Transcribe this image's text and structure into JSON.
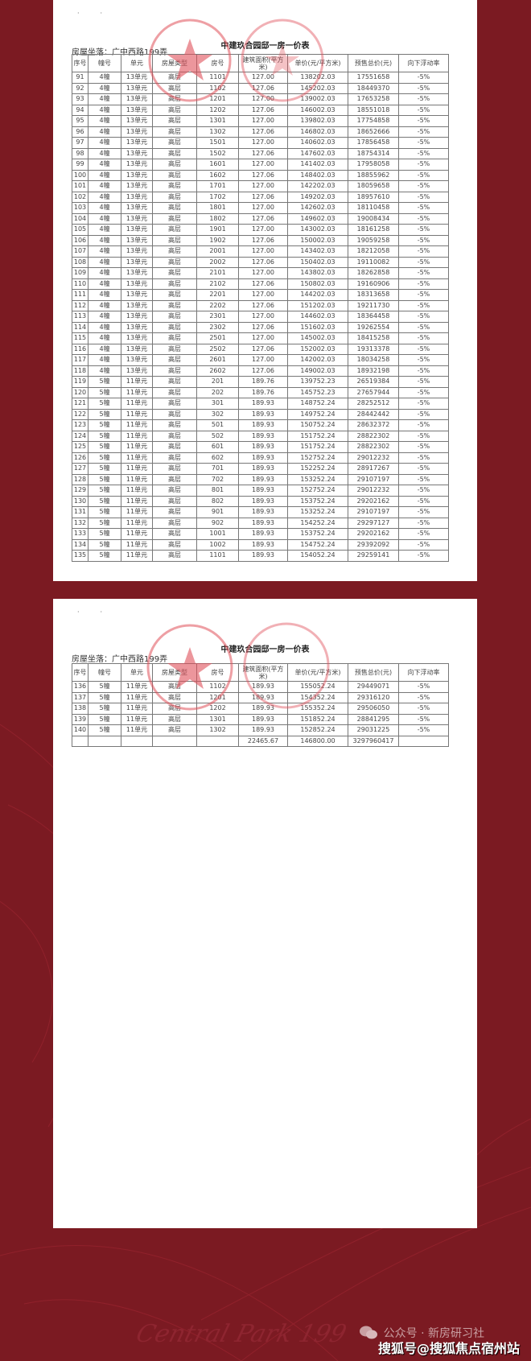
{
  "document": {
    "title": "中建玖合园邸一房一价表",
    "location": "房屋坐落：广中西路199弄",
    "headers": [
      "序号",
      "幢号",
      "单元",
      "房屋类型",
      "房号",
      "建筑面积(平方米)",
      "单价(元/平方米)",
      "预售总价(元)",
      "向下浮动率"
    ],
    "page1_rows": [
      [
        "91",
        "4幢",
        "13单元",
        "高层",
        "1101",
        "127.00",
        "138202.03",
        "17551658",
        "-5%"
      ],
      [
        "92",
        "4幢",
        "13单元",
        "高层",
        "1102",
        "127.06",
        "145202.03",
        "18449370",
        "-5%"
      ],
      [
        "93",
        "4幢",
        "13单元",
        "高层",
        "1201",
        "127.00",
        "139002.03",
        "17653258",
        "-5%"
      ],
      [
        "94",
        "4幢",
        "13单元",
        "高层",
        "1202",
        "127.06",
        "146002.03",
        "18551018",
        "-5%"
      ],
      [
        "95",
        "4幢",
        "13单元",
        "高层",
        "1301",
        "127.00",
        "139802.03",
        "17754858",
        "-5%"
      ],
      [
        "96",
        "4幢",
        "13单元",
        "高层",
        "1302",
        "127.06",
        "146802.03",
        "18652666",
        "-5%"
      ],
      [
        "97",
        "4幢",
        "13单元",
        "高层",
        "1501",
        "127.00",
        "140602.03",
        "17856458",
        "-5%"
      ],
      [
        "98",
        "4幢",
        "13单元",
        "高层",
        "1502",
        "127.06",
        "147602.03",
        "18754314",
        "-5%"
      ],
      [
        "99",
        "4幢",
        "13单元",
        "高层",
        "1601",
        "127.00",
        "141402.03",
        "17958058",
        "-5%"
      ],
      [
        "100",
        "4幢",
        "13单元",
        "高层",
        "1602",
        "127.06",
        "148402.03",
        "18855962",
        "-5%"
      ],
      [
        "101",
        "4幢",
        "13单元",
        "高层",
        "1701",
        "127.00",
        "142202.03",
        "18059658",
        "-5%"
      ],
      [
        "102",
        "4幢",
        "13单元",
        "高层",
        "1702",
        "127.06",
        "149202.03",
        "18957610",
        "-5%"
      ],
      [
        "103",
        "4幢",
        "13单元",
        "高层",
        "1801",
        "127.00",
        "142602.03",
        "18110458",
        "-5%"
      ],
      [
        "104",
        "4幢",
        "13单元",
        "高层",
        "1802",
        "127.06",
        "149602.03",
        "19008434",
        "-5%"
      ],
      [
        "105",
        "4幢",
        "13单元",
        "高层",
        "1901",
        "127.00",
        "143002.03",
        "18161258",
        "-5%"
      ],
      [
        "106",
        "4幢",
        "13单元",
        "高层",
        "1902",
        "127.06",
        "150002.03",
        "19059258",
        "-5%"
      ],
      [
        "107",
        "4幢",
        "13单元",
        "高层",
        "2001",
        "127.00",
        "143402.03",
        "18212058",
        "-5%"
      ],
      [
        "108",
        "4幢",
        "13单元",
        "高层",
        "2002",
        "127.06",
        "150402.03",
        "19110082",
        "-5%"
      ],
      [
        "109",
        "4幢",
        "13单元",
        "高层",
        "2101",
        "127.00",
        "143802.03",
        "18262858",
        "-5%"
      ],
      [
        "110",
        "4幢",
        "13单元",
        "高层",
        "2102",
        "127.06",
        "150802.03",
        "19160906",
        "-5%"
      ],
      [
        "111",
        "4幢",
        "13单元",
        "高层",
        "2201",
        "127.00",
        "144202.03",
        "18313658",
        "-5%"
      ],
      [
        "112",
        "4幢",
        "13单元",
        "高层",
        "2202",
        "127.06",
        "151202.03",
        "19211730",
        "-5%"
      ],
      [
        "113",
        "4幢",
        "13单元",
        "高层",
        "2301",
        "127.00",
        "144602.03",
        "18364458",
        "-5%"
      ],
      [
        "114",
        "4幢",
        "13单元",
        "高层",
        "2302",
        "127.06",
        "151602.03",
        "19262554",
        "-5%"
      ],
      [
        "115",
        "4幢",
        "13单元",
        "高层",
        "2501",
        "127.00",
        "145002.03",
        "18415258",
        "-5%"
      ],
      [
        "116",
        "4幢",
        "13单元",
        "高层",
        "2502",
        "127.06",
        "152002.03",
        "19313378",
        "-5%"
      ],
      [
        "117",
        "4幢",
        "13单元",
        "高层",
        "2601",
        "127.00",
        "142002.03",
        "18034258",
        "-5%"
      ],
      [
        "118",
        "4幢",
        "13单元",
        "高层",
        "2602",
        "127.06",
        "149002.03",
        "18932198",
        "-5%"
      ],
      [
        "119",
        "5幢",
        "11单元",
        "高层",
        "201",
        "189.76",
        "139752.23",
        "26519384",
        "-5%"
      ],
      [
        "120",
        "5幢",
        "11单元",
        "高层",
        "202",
        "189.76",
        "145752.23",
        "27657944",
        "-5%"
      ],
      [
        "121",
        "5幢",
        "11单元",
        "高层",
        "301",
        "189.93",
        "148752.24",
        "28252512",
        "-5%"
      ],
      [
        "122",
        "5幢",
        "11单元",
        "高层",
        "302",
        "189.93",
        "149752.24",
        "28442442",
        "-5%"
      ],
      [
        "123",
        "5幢",
        "11单元",
        "高层",
        "501",
        "189.93",
        "150752.24",
        "28632372",
        "-5%"
      ],
      [
        "124",
        "5幢",
        "11单元",
        "高层",
        "502",
        "189.93",
        "151752.24",
        "28822302",
        "-5%"
      ],
      [
        "125",
        "5幢",
        "11单元",
        "高层",
        "601",
        "189.93",
        "151752.24",
        "28822302",
        "-5%"
      ],
      [
        "126",
        "5幢",
        "11单元",
        "高层",
        "602",
        "189.93",
        "152752.24",
        "29012232",
        "-5%"
      ],
      [
        "127",
        "5幢",
        "11单元",
        "高层",
        "701",
        "189.93",
        "152252.24",
        "28917267",
        "-5%"
      ],
      [
        "128",
        "5幢",
        "11单元",
        "高层",
        "702",
        "189.93",
        "153252.24",
        "29107197",
        "-5%"
      ],
      [
        "129",
        "5幢",
        "11单元",
        "高层",
        "801",
        "189.93",
        "152752.24",
        "29012232",
        "-5%"
      ],
      [
        "130",
        "5幢",
        "11单元",
        "高层",
        "802",
        "189.93",
        "153752.24",
        "29202162",
        "-5%"
      ],
      [
        "131",
        "5幢",
        "11单元",
        "高层",
        "901",
        "189.93",
        "153252.24",
        "29107197",
        "-5%"
      ],
      [
        "132",
        "5幢",
        "11单元",
        "高层",
        "902",
        "189.93",
        "154252.24",
        "29297127",
        "-5%"
      ],
      [
        "133",
        "5幢",
        "11单元",
        "高层",
        "1001",
        "189.93",
        "153752.24",
        "29202162",
        "-5%"
      ],
      [
        "134",
        "5幢",
        "11单元",
        "高层",
        "1002",
        "189.93",
        "154752.24",
        "29392092",
        "-5%"
      ],
      [
        "135",
        "5幢",
        "11单元",
        "高层",
        "1101",
        "189.93",
        "154052.24",
        "29259141",
        "-5%"
      ]
    ],
    "page2_rows": [
      [
        "136",
        "5幢",
        "11单元",
        "高层",
        "1102",
        "189.93",
        "155052.24",
        "29449071",
        "-5%"
      ],
      [
        "137",
        "5幢",
        "11单元",
        "高层",
        "1201",
        "189.93",
        "154352.24",
        "29316120",
        "-5%"
      ],
      [
        "138",
        "5幢",
        "11单元",
        "高层",
        "1202",
        "189.93",
        "155352.24",
        "29506050",
        "-5%"
      ],
      [
        "139",
        "5幢",
        "11单元",
        "高层",
        "1301",
        "189.93",
        "151852.24",
        "28841295",
        "-5%"
      ],
      [
        "140",
        "5幢",
        "11单元",
        "高层",
        "1302",
        "189.93",
        "152852.24",
        "29031225",
        "-5%"
      ]
    ],
    "totals": [
      "",
      "",
      "",
      "",
      "",
      "22465.67",
      "146800.00",
      "3297960417",
      ""
    ]
  },
  "watermark": "Central Park 199",
  "footer": {
    "wechat_label": "公众号 · 新房研习社",
    "sohu_label": "搜狐号@搜狐焦点宿州站"
  },
  "colors": {
    "background": "#7b1a22",
    "stamp": "#e0505a",
    "paper": "#ffffff"
  }
}
